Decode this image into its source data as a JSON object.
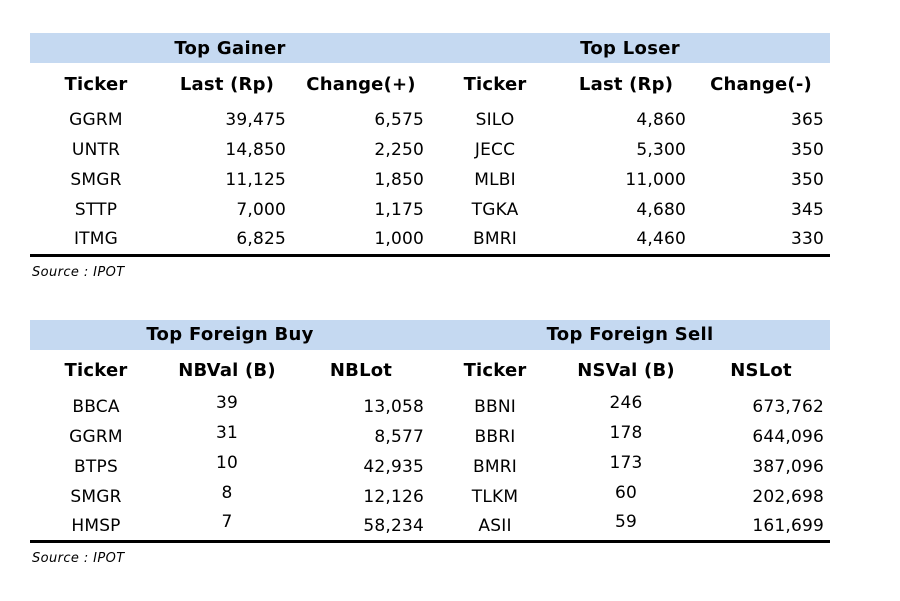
{
  "colors": {
    "header_bg": "#C5D9F1",
    "text": "#000000",
    "rule": "#000000"
  },
  "tables": [
    {
      "sections": [
        {
          "title": "Top Gainer",
          "columns": [
            "Ticker",
            "Last (Rp)",
            "Change(+)"
          ],
          "rows": [
            [
              "GGRM",
              "39,475",
              "6,575"
            ],
            [
              "UNTR",
              "14,850",
              "2,250"
            ],
            [
              "SMGR",
              "11,125",
              "1,850"
            ],
            [
              "STTP",
              "7,000",
              "1,175"
            ],
            [
              "ITMG",
              "6,825",
              "1,000"
            ]
          ]
        },
        {
          "title": "Top Loser",
          "columns": [
            "Ticker",
            "Last (Rp)",
            "Change(-)"
          ],
          "rows": [
            [
              "SILO",
              "4,860",
              "365"
            ],
            [
              "JECC",
              "5,300",
              "350"
            ],
            [
              "MLBI",
              "11,000",
              "350"
            ],
            [
              "TGKA",
              "4,680",
              "345"
            ],
            [
              "BMRI",
              "4,460",
              "330"
            ]
          ]
        }
      ],
      "source": "Source : IPOT"
    },
    {
      "sections": [
        {
          "title": "Top Foreign Buy",
          "columns": [
            "Ticker",
            "NBVal (B)",
            "NBLot"
          ],
          "rows": [
            [
              "BBCA",
              "39",
              "13,058"
            ],
            [
              "GGRM",
              "31",
              "8,577"
            ],
            [
              "BTPS",
              "10",
              "42,935"
            ],
            [
              "SMGR",
              "8",
              "12,126"
            ],
            [
              "HMSP",
              "7",
              "58,234"
            ]
          ]
        },
        {
          "title": "Top Foreign Sell",
          "columns": [
            "Ticker",
            "NSVal (B)",
            "NSLot"
          ],
          "rows": [
            [
              "BBNI",
              "246",
              "673,762"
            ],
            [
              "BBRI",
              "178",
              "644,096"
            ],
            [
              "BMRI",
              "173",
              "387,096"
            ],
            [
              "TLKM",
              "60",
              "202,698"
            ],
            [
              "ASII",
              "59",
              "161,699"
            ]
          ]
        }
      ],
      "source": "Source : IPOT"
    }
  ]
}
